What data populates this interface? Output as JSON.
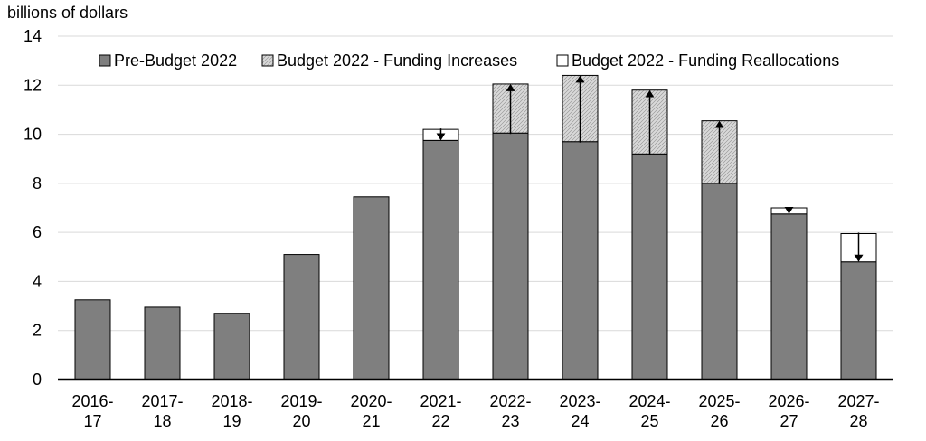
{
  "chart_data": {
    "type": "bar",
    "stacked": true,
    "unit_label": "billions of dollars",
    "ylim": [
      0,
      14
    ],
    "yticks": [
      "0",
      "2",
      "4",
      "6",
      "8",
      "10",
      "12",
      "14"
    ],
    "grid": true,
    "legend_position": "top-right",
    "categories": [
      [
        "2016-",
        "17"
      ],
      [
        "2017-",
        "18"
      ],
      [
        "2018-",
        "19"
      ],
      [
        "2019-",
        "20"
      ],
      [
        "2020-",
        "21"
      ],
      [
        "2021-",
        "22"
      ],
      [
        "2022-",
        "23"
      ],
      [
        "2023-",
        "24"
      ],
      [
        "2024-",
        "25"
      ],
      [
        "2025-",
        "26"
      ],
      [
        "2026-",
        "27"
      ],
      [
        "2027-",
        "28"
      ]
    ],
    "series": [
      {
        "name": "Pre-Budget 2022",
        "color": "#7f7f7f",
        "values": [
          3.25,
          2.95,
          2.7,
          5.1,
          7.45,
          9.75,
          10.05,
          9.7,
          9.2,
          8.0,
          6.75,
          4.8
        ]
      },
      {
        "name": "Budget 2022 - Funding Increases",
        "color": "#d9d9d9",
        "pattern": "hatched",
        "values": [
          0,
          0,
          0,
          0,
          0,
          0,
          2.0,
          2.7,
          2.6,
          2.55,
          0,
          0
        ]
      },
      {
        "name": "Budget 2022 - Funding Reallocations",
        "color": "#ffffff",
        "values": [
          0,
          0,
          0,
          0,
          0,
          0.45,
          0,
          0,
          0,
          0,
          0.25,
          1.15
        ]
      }
    ],
    "arrows": [
      {
        "category": "2021-22",
        "direction": "down",
        "from": 10.2,
        "to": 9.75
      },
      {
        "category": "2022-23",
        "direction": "up",
        "from": 10.05,
        "to": 12.05
      },
      {
        "category": "2023-24",
        "direction": "up",
        "from": 9.7,
        "to": 12.4
      },
      {
        "category": "2024-25",
        "direction": "up",
        "from": 9.2,
        "to": 11.8
      },
      {
        "category": "2025-26",
        "direction": "up",
        "from": 8.0,
        "to": 10.55
      },
      {
        "category": "2026-27",
        "direction": "down",
        "from": 7.0,
        "to": 6.75
      },
      {
        "category": "2027-28",
        "direction": "down",
        "from": 5.95,
        "to": 4.8
      }
    ]
  }
}
